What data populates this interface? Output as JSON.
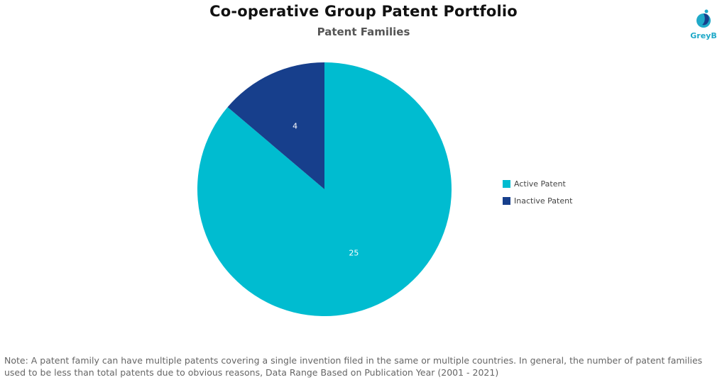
{
  "header": {
    "title": "Co-operative Group Patent Portfolio",
    "subtitle": "Patent Families"
  },
  "logo": {
    "icon": "greyb-logo-icon",
    "text": "GreyB",
    "color": "#1fa9c8"
  },
  "chart_data": {
    "type": "pie",
    "title": "Co-operative Group Patent Portfolio",
    "subtitle": "Patent Families",
    "slices": [
      {
        "label": "Active Patent",
        "value": 25,
        "color": "#00bcd0"
      },
      {
        "label": "Inactive Patent",
        "value": 4,
        "color": "#173f8c"
      }
    ],
    "legend": "right",
    "start_angle_deg": 0,
    "direction": "clockwise"
  },
  "footer": {
    "note": "Note: A patent family can have multiple patents covering a single invention filed in the same or multiple countries. In general, the number of patent families used to be less than total patents due to obvious reasons, Data Range Based on Publication Year (2001 - 2021)"
  }
}
